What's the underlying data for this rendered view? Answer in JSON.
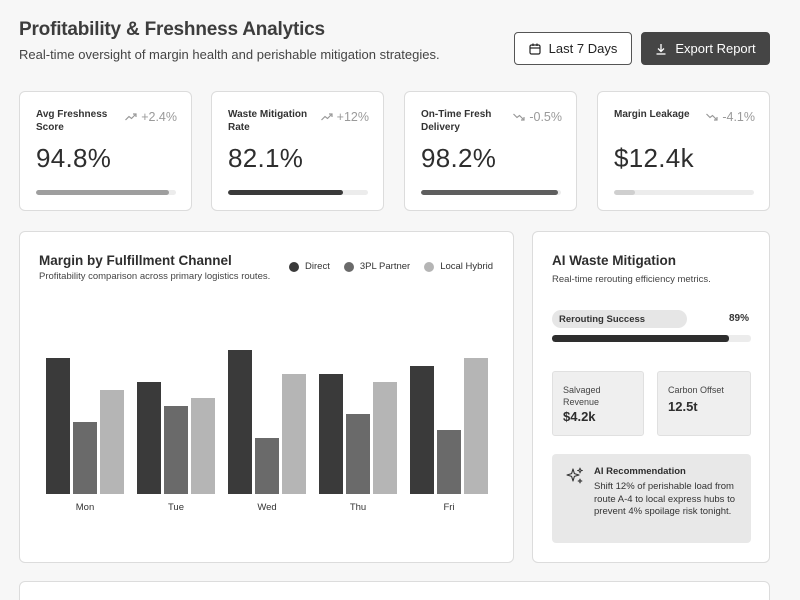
{
  "header": {
    "title": "Profitability & Freshness Analytics",
    "subtitle": "Real-time oversight of margin health and perishable mitigation strategies.",
    "date_range_label": "Last 7 Days",
    "export_label": "Export Report"
  },
  "kpis": [
    {
      "label": "Avg Freshness Score",
      "delta": "+2.4%",
      "trend": "up",
      "value": "94.8%",
      "progress": 0.95,
      "bar_color": "#9e9e9e"
    },
    {
      "label": "Waste Mitigation Rate",
      "delta": "+12%",
      "trend": "up",
      "value": "82.1%",
      "progress": 0.82,
      "bar_color": "#3a3a3a"
    },
    {
      "label": "On-Time Fresh Delivery",
      "delta": "-0.5%",
      "trend": "down",
      "value": "98.2%",
      "progress": 0.98,
      "bar_color": "#5e5e5e"
    },
    {
      "label": "Margin Leakage",
      "delta": "-4.1%",
      "trend": "down",
      "value": "$12.4k",
      "progress": 0.15,
      "bar_color": "#cfcfcf"
    }
  ],
  "chart_card": {
    "title": "Margin by Fulfillment Channel",
    "subtitle": "Profitability comparison across primary logistics routes."
  },
  "chart_data": {
    "type": "bar",
    "title": "Margin by Fulfillment Channel",
    "subtitle": "Profitability comparison across primary logistics routes.",
    "categories": [
      "Mon",
      "Tue",
      "Wed",
      "Thu",
      "Fri"
    ],
    "series": [
      {
        "name": "Direct",
        "color": "#3a3a3a",
        "values": [
          85,
          70,
          90,
          75,
          80
        ]
      },
      {
        "name": "3PL Partner",
        "color": "#6a6a6a",
        "values": [
          45,
          55,
          35,
          50,
          40
        ]
      },
      {
        "name": "Local Hybrid",
        "color": "#b5b5b5",
        "values": [
          65,
          60,
          75,
          70,
          85
        ]
      }
    ],
    "ylim": [
      0,
      100
    ],
    "grid": false,
    "legend_position": "top-right",
    "xlabel": "",
    "ylabel": ""
  },
  "ai_card": {
    "title": "AI Waste Mitigation",
    "subtitle": "Real-time rerouting efficiency metrics.",
    "rerouting_label": "Rerouting Success",
    "rerouting_pct_text": "89%",
    "rerouting_progress": 0.89,
    "stats": [
      {
        "label": "Salvaged Revenue",
        "value": "$4.2k"
      },
      {
        "label": "Carbon Offset",
        "value": "12.5t"
      }
    ],
    "recommendation": {
      "title": "AI Recommendation",
      "text": "Shift 12% of perishable load from route A-4 to local express hubs to prevent 4% spoilage risk tonight."
    }
  },
  "icons": {
    "calendar": "calendar-icon",
    "download": "download-icon",
    "trend_up": "trend-up-icon",
    "trend_down": "trend-down-icon",
    "sparkles": "sparkles-icon"
  }
}
